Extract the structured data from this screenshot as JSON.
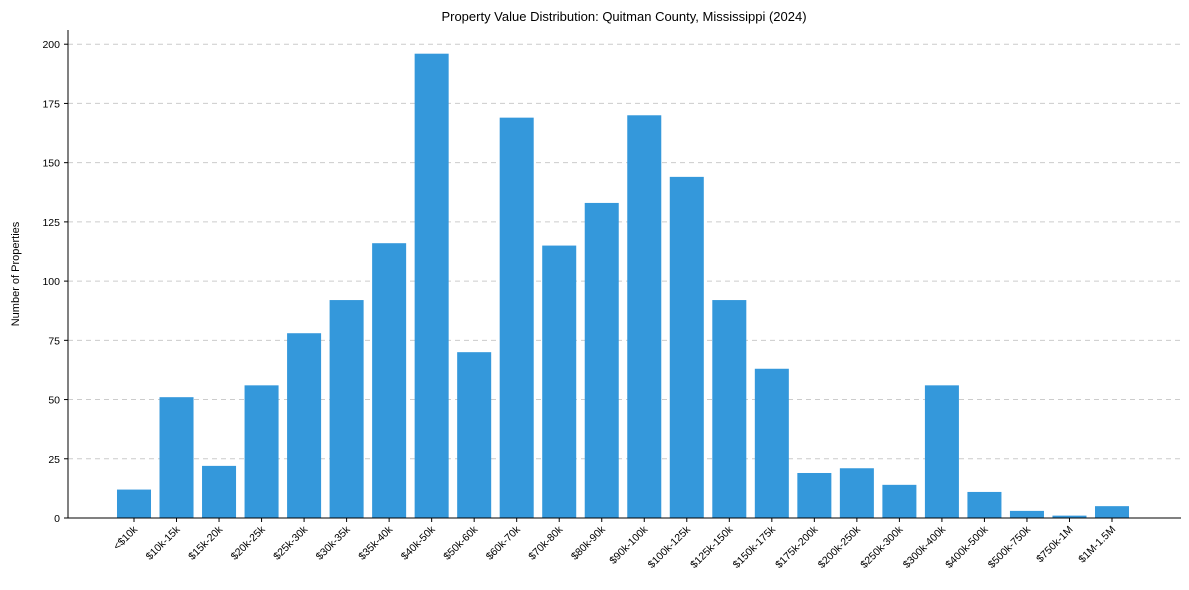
{
  "chart_data": {
    "type": "bar",
    "title": "Property Value Distribution: Quitman County, Mississippi (2024)",
    "xlabel": "",
    "ylabel": "Number of Properties",
    "ylim": [
      0,
      206
    ],
    "yticks": [
      0,
      25,
      50,
      75,
      100,
      125,
      150,
      175,
      200
    ],
    "grid": "y-dashed",
    "color": "#3498db",
    "categories": [
      "<$10k",
      "$10k-15k",
      "$15k-20k",
      "$20k-25k",
      "$25k-30k",
      "$30k-35k",
      "$35k-40k",
      "$40k-50k",
      "$50k-60k",
      "$60k-70k",
      "$70k-80k",
      "$80k-90k",
      "$90k-100k",
      "$100k-125k",
      "$125k-150k",
      "$150k-175k",
      "$175k-200k",
      "$200k-250k",
      "$250k-300k",
      "$300k-400k",
      "$400k-500k",
      "$500k-750k",
      "$750k-1M",
      "$1M-1.5M"
    ],
    "values": [
      12,
      51,
      22,
      56,
      78,
      92,
      116,
      196,
      70,
      169,
      115,
      133,
      170,
      144,
      92,
      63,
      19,
      21,
      14,
      56,
      11,
      3,
      1,
      5
    ]
  }
}
